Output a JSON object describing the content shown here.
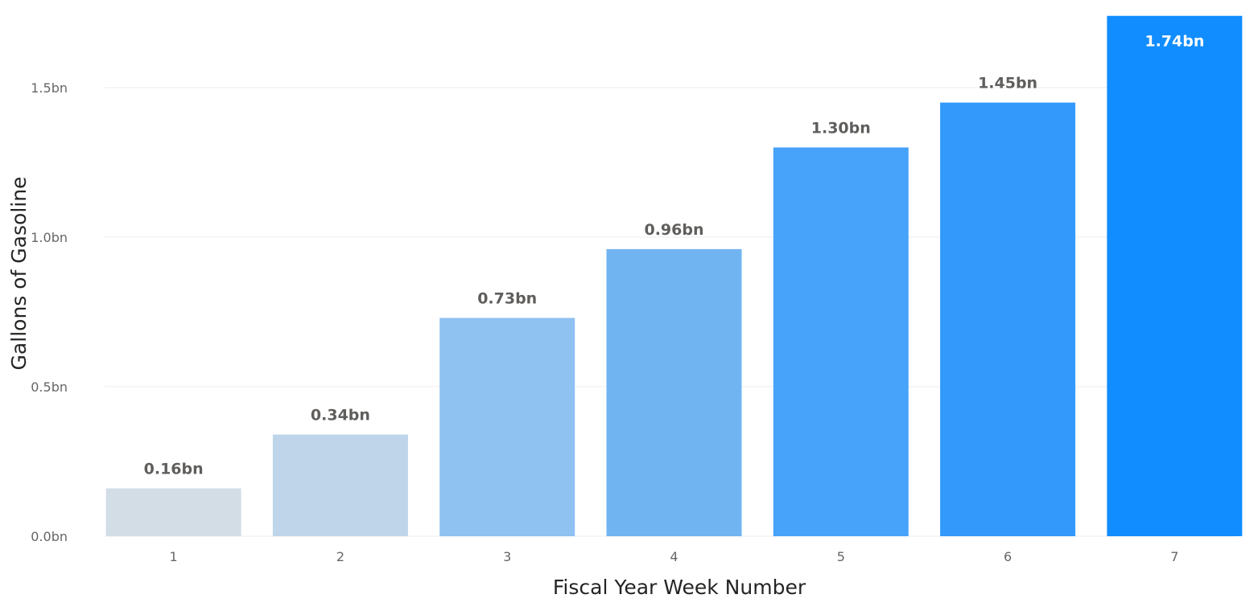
{
  "chart_data": {
    "type": "bar",
    "categories": [
      "1",
      "2",
      "3",
      "4",
      "5",
      "6",
      "7"
    ],
    "values": [
      0.16,
      0.34,
      0.73,
      0.96,
      1.3,
      1.45,
      1.74
    ],
    "data_labels": [
      "0.16bn",
      "0.34bn",
      "0.73bn",
      "0.96bn",
      "1.30bn",
      "1.45bn",
      "1.74bn"
    ],
    "bar_colors": [
      "#d3dde6",
      "#bed5ea",
      "#8fc1f1",
      "#71b4f2",
      "#47a3f9",
      "#3399fb",
      "#118dff"
    ],
    "title": "",
    "xlabel": "Fiscal Year Week Number",
    "ylabel": "Gallons of Gasoline",
    "ylim": [
      0,
      1.75
    ],
    "yticks": [
      {
        "value": 0.0,
        "label": "0.0bn"
      },
      {
        "value": 0.5,
        "label": "0.5bn"
      },
      {
        "value": 1.0,
        "label": "1.0bn"
      },
      {
        "value": 1.5,
        "label": "1.5bn"
      }
    ],
    "grid": true,
    "label_color_outside": "#605e5c",
    "label_color_inside": "#ffffff"
  }
}
